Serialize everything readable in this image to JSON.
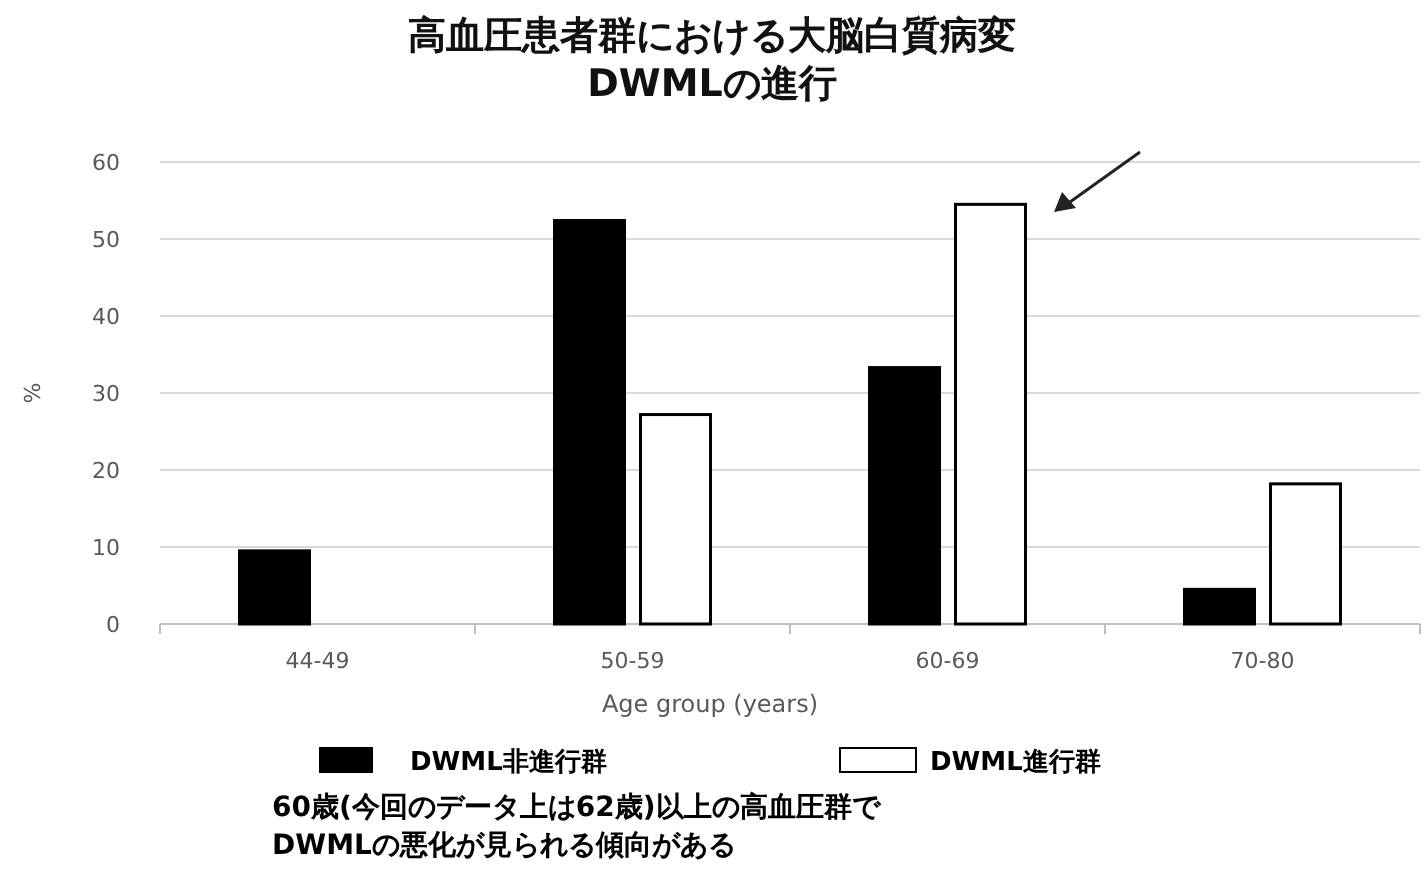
{
  "chart_data": {
    "type": "bar",
    "title": "高血圧患者群における大脳白質病変 DWMLの進行",
    "xlabel": "Age group (years)",
    "ylabel": "%",
    "categories": [
      "44-49",
      "50-59",
      "60-69",
      "70-80"
    ],
    "series": [
      {
        "name": "DWML非進行群",
        "color": "#000000",
        "values": [
          9.5,
          52.4,
          33.3,
          4.5
        ]
      },
      {
        "name": "DWML進行群",
        "color": "#ffffff",
        "values": [
          0,
          27.2,
          54.5,
          18.2
        ]
      }
    ],
    "ylim": [
      0,
      60
    ],
    "yticks": [
      0,
      10,
      20,
      30,
      40,
      50,
      60
    ],
    "grid": "y",
    "legend": "bottom",
    "annotations": [
      "60歳(今回のデータ上は62歳)以上の高血圧群で",
      "DWMLの悪化が見られる傾向がある"
    ]
  }
}
